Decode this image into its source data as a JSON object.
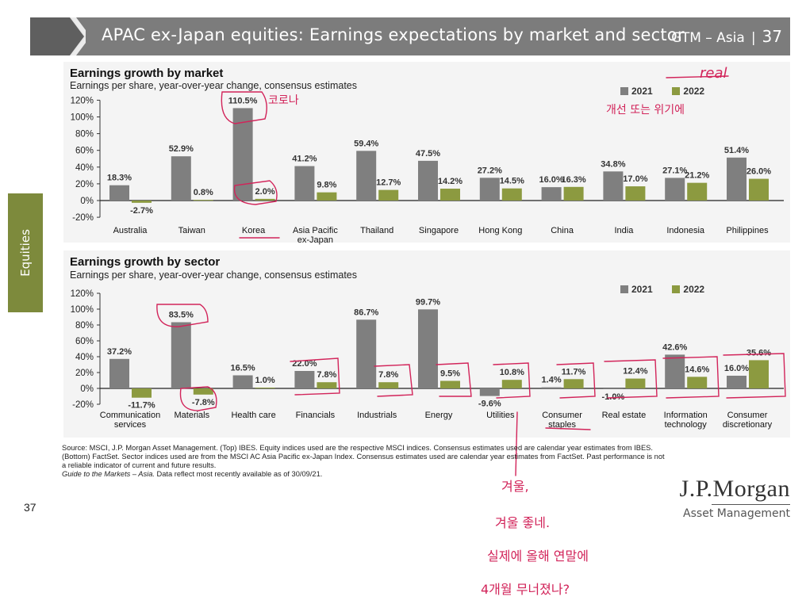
{
  "header": {
    "title": "APAC ex-Japan equities: Earnings expectations by market and sector",
    "series_tag": "GTM – Asia",
    "separator": "|",
    "page_number": "37"
  },
  "side_tab": {
    "label": "Equities"
  },
  "colors": {
    "c2021": "#7f7f7f",
    "c2022": "#8c9a40",
    "header": "#7c7c7c",
    "annotation": "#d2245a"
  },
  "chart_data": [
    {
      "type": "bar",
      "title": "Earnings growth by market",
      "subtitle": "Earnings per share, year-over-year change, consensus estimates",
      "categories": [
        "Australia",
        "Taiwan",
        "Korea",
        "Asia Pacific ex-Japan",
        "Thailand",
        "Singapore",
        "Hong Kong",
        "China",
        "India",
        "Indonesia",
        "Philippines"
      ],
      "series": [
        {
          "name": "2021",
          "values": [
            18.3,
            52.9,
            110.5,
            41.2,
            59.4,
            47.5,
            27.2,
            16.0,
            34.8,
            27.1,
            51.4
          ]
        },
        {
          "name": "2022",
          "values": [
            -2.7,
            0.8,
            2.0,
            9.8,
            12.7,
            14.2,
            14.5,
            16.3,
            17.0,
            21.2,
            26.0
          ]
        }
      ],
      "data_labels": {
        "s2021": [
          "18.3%",
          "52.9%",
          "110.5%",
          "41.2%",
          "59.4%",
          "47.5%",
          "27.2%",
          "16.0%",
          "34.8%",
          "27.1%",
          "51.4%"
        ],
        "s2022": [
          "-2.7%",
          "0.8%",
          "2.0%",
          "9.8%",
          "12.7%",
          "14.2%",
          "14.5%",
          "16.3%",
          "17.0%",
          "21.2%",
          "26.0%"
        ]
      },
      "yticks": [
        "120%",
        "100%",
        "80%",
        "60%",
        "40%",
        "20%",
        "0%",
        "-20%"
      ],
      "ylim": [
        -20,
        120
      ],
      "legend": [
        "2021",
        "2022"
      ],
      "legend_position": "top-right",
      "grid": false
    },
    {
      "type": "bar",
      "title": "Earnings growth by sector",
      "subtitle": "Earnings per share, year-over-year change, consensus estimates",
      "categories": [
        "Communication services",
        "Materials",
        "Health care",
        "Financials",
        "Industrials",
        "Energy",
        "Utilities",
        "Consumer staples",
        "Real estate",
        "Information technology",
        "Consumer discretionary"
      ],
      "series": [
        {
          "name": "2021",
          "values": [
            37.2,
            83.5,
            16.5,
            22.0,
            86.7,
            99.7,
            -9.6,
            1.4,
            -1.0,
            42.6,
            16.0
          ]
        },
        {
          "name": "2022",
          "values": [
            -11.7,
            -7.8,
            1.0,
            7.8,
            7.8,
            9.5,
            10.8,
            11.7,
            12.4,
            14.6,
            35.6
          ]
        }
      ],
      "data_labels": {
        "s2021": [
          "37.2%",
          "83.5%",
          "16.5%",
          "22.0%",
          "86.7%",
          "99.7%",
          "-9.6%",
          "1.4%",
          "-1.0%",
          "42.6%",
          "16.0%"
        ],
        "s2022": [
          "-11.7%",
          "-7.8%",
          "1.0%",
          "7.8%",
          "7.8%",
          "9.5%",
          "10.8%",
          "11.7%",
          "12.4%",
          "14.6%",
          "35.6%"
        ]
      },
      "yticks": [
        "120%",
        "100%",
        "80%",
        "60%",
        "40%",
        "20%",
        "0%",
        "-20%"
      ],
      "ylim": [
        -20,
        120
      ],
      "legend": [
        "2021",
        "2022"
      ],
      "legend_position": "top-right",
      "grid": false
    }
  ],
  "source": {
    "text": "Source: MSCI, J.P. Morgan Asset Management. (Top) IBES. Equity indices used are the respective MSCI indices. Consensus estimates used are calendar year estimates from IBES. (Bottom) FactSet. Sector indices used are from the MSCI AC Asia Pacific ex-Japan Index. Consensus estimates used are calendar year estimates from FactSet. Past performance is not a reliable indicator of current and future results.",
    "guide": "Guide to the Markets – Asia.",
    "date_note": " Data reflect most recently available as of 30/09/21."
  },
  "footer": {
    "page": "37",
    "logo_main": "J.P.Morgan",
    "logo_sub": "Asset Management"
  },
  "annotations": {
    "real": "real",
    "korea": "코로나",
    "growth": "개선 또는 위기에",
    "note1": "겨울,",
    "note2": "겨울 좋네.",
    "note3": "실제에 올해 연말에",
    "note4": "4개월 무너졌나?"
  }
}
